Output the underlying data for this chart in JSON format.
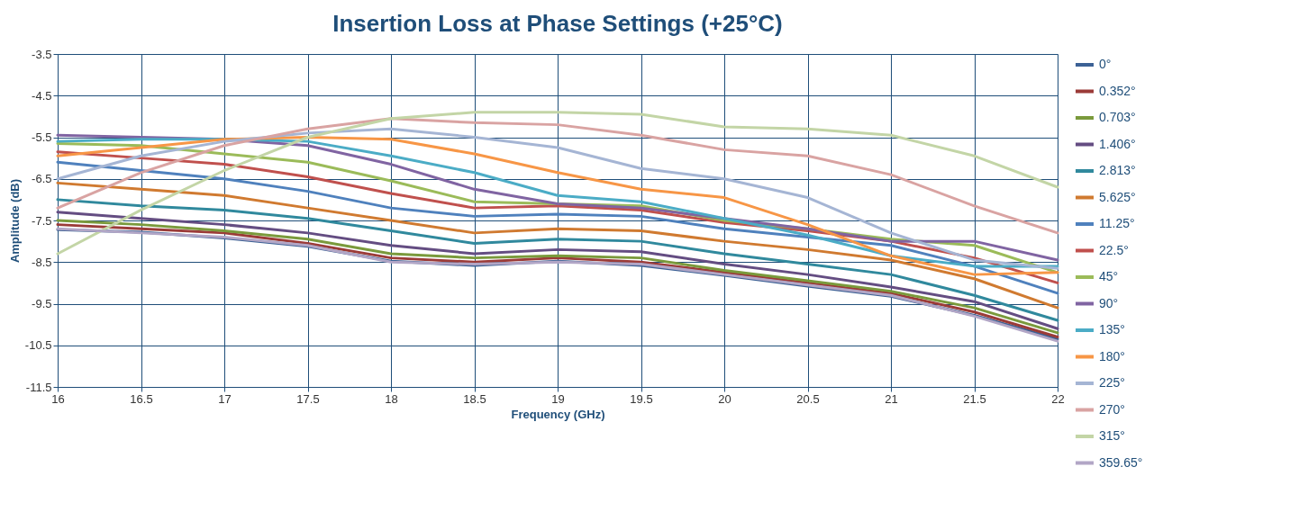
{
  "chart_data": {
    "type": "line",
    "title": "Insertion Loss at Phase Settings (+25°C)",
    "xlabel": "Frequency (GHz)",
    "ylabel": "Amplitude (dB)",
    "x": [
      16,
      16.5,
      17,
      17.5,
      18,
      18.5,
      19,
      19.5,
      20,
      20.5,
      21,
      21.5,
      22
    ],
    "xlim": [
      16,
      22
    ],
    "xticks": [
      16,
      16.5,
      17,
      17.5,
      18,
      18.5,
      19,
      19.5,
      20,
      20.5,
      21,
      21.5,
      22
    ],
    "ylim": [
      -11.5,
      -3.5
    ],
    "yticks": [
      -3.5,
      -4.5,
      -5.5,
      -6.5,
      -7.5,
      -8.5,
      -9.5,
      -10.5,
      -11.5
    ],
    "grid": true,
    "legend": "right",
    "line_style": "solid",
    "series": [
      {
        "name": "0°",
        "color": "#3c6195",
        "values": [
          -7.72,
          -7.78,
          -7.92,
          -8.12,
          -8.48,
          -8.58,
          -8.48,
          -8.58,
          -8.82,
          -9.08,
          -9.32,
          -9.78,
          -10.35
        ]
      },
      {
        "name": "0.352°",
        "color": "#9b3b38",
        "values": [
          -7.6,
          -7.7,
          -7.8,
          -8.05,
          -8.4,
          -8.5,
          -8.4,
          -8.5,
          -8.75,
          -9.0,
          -9.25,
          -9.7,
          -10.3
        ]
      },
      {
        "name": "0.703°",
        "color": "#7a9a3c",
        "values": [
          -7.5,
          -7.6,
          -7.75,
          -7.95,
          -8.3,
          -8.4,
          -8.35,
          -8.4,
          -8.7,
          -8.95,
          -9.2,
          -9.6,
          -10.2
        ]
      },
      {
        "name": "1.406°",
        "color": "#644d82",
        "values": [
          -7.3,
          -7.45,
          -7.6,
          -7.8,
          -8.1,
          -8.3,
          -8.2,
          -8.25,
          -8.55,
          -8.8,
          -9.1,
          -9.45,
          -10.1
        ]
      },
      {
        "name": "2.813°",
        "color": "#30899d",
        "values": [
          -7.0,
          -7.15,
          -7.25,
          -7.45,
          -7.75,
          -8.05,
          -7.95,
          -8.0,
          -8.3,
          -8.55,
          -8.8,
          -9.3,
          -9.9
        ]
      },
      {
        "name": "5.625°",
        "color": "#d07a30",
        "values": [
          -6.6,
          -6.75,
          -6.9,
          -7.2,
          -7.5,
          -7.8,
          -7.7,
          -7.75,
          -8.0,
          -8.2,
          -8.45,
          -8.9,
          -9.6
        ]
      },
      {
        "name": "11.25°",
        "color": "#4f81bd",
        "values": [
          -6.1,
          -6.3,
          -6.5,
          -6.8,
          -7.2,
          -7.4,
          -7.35,
          -7.4,
          -7.7,
          -7.9,
          -8.1,
          -8.6,
          -9.25
        ]
      },
      {
        "name": "22.5°",
        "color": "#c0504d",
        "values": [
          -5.85,
          -6.0,
          -6.15,
          -6.45,
          -6.85,
          -7.2,
          -7.15,
          -7.25,
          -7.55,
          -7.75,
          -8.0,
          -8.4,
          -9.0
        ]
      },
      {
        "name": "45°",
        "color": "#9bbb59",
        "values": [
          -5.65,
          -5.7,
          -5.9,
          -6.1,
          -6.55,
          -7.05,
          -7.1,
          -7.15,
          -7.5,
          -7.7,
          -7.95,
          -8.1,
          -8.75
        ]
      },
      {
        "name": "90°",
        "color": "#8064a2",
        "values": [
          -5.45,
          -5.5,
          -5.55,
          -5.7,
          -6.15,
          -6.75,
          -7.1,
          -7.2,
          -7.45,
          -7.7,
          -8.0,
          -8.0,
          -8.45
        ]
      },
      {
        "name": "135°",
        "color": "#4bacc6",
        "values": [
          -5.6,
          -5.55,
          -5.55,
          -5.6,
          -5.95,
          -6.35,
          -6.9,
          -7.05,
          -7.45,
          -7.85,
          -8.35,
          -8.6,
          -8.6
        ]
      },
      {
        "name": "180°",
        "color": "#f79646",
        "values": [
          -5.95,
          -5.75,
          -5.55,
          -5.5,
          -5.55,
          -5.9,
          -6.35,
          -6.75,
          -6.95,
          -7.6,
          -8.35,
          -8.8,
          -8.75
        ]
      },
      {
        "name": "225°",
        "color": "#a5b5d4",
        "values": [
          -6.5,
          -5.95,
          -5.6,
          -5.4,
          -5.3,
          -5.5,
          -5.75,
          -6.25,
          -6.5,
          -6.95,
          -7.8,
          -8.45,
          -8.65
        ]
      },
      {
        "name": "270°",
        "color": "#d9a3a2",
        "values": [
          -7.2,
          -6.35,
          -5.7,
          -5.3,
          -5.05,
          -5.15,
          -5.2,
          -5.45,
          -5.8,
          -5.95,
          -6.4,
          -7.15,
          -7.8
        ]
      },
      {
        "name": "315°",
        "color": "#c3d5a6",
        "values": [
          -8.3,
          -7.25,
          -6.3,
          -5.5,
          -5.05,
          -4.9,
          -4.9,
          -4.95,
          -5.25,
          -5.3,
          -5.45,
          -5.95,
          -6.7
        ]
      },
      {
        "name": "359.65°",
        "color": "#b2a6c6",
        "values": [
          -7.7,
          -7.8,
          -7.9,
          -8.1,
          -8.5,
          -8.55,
          -8.5,
          -8.55,
          -8.8,
          -9.05,
          -9.3,
          -9.8,
          -10.4
        ]
      }
    ]
  }
}
